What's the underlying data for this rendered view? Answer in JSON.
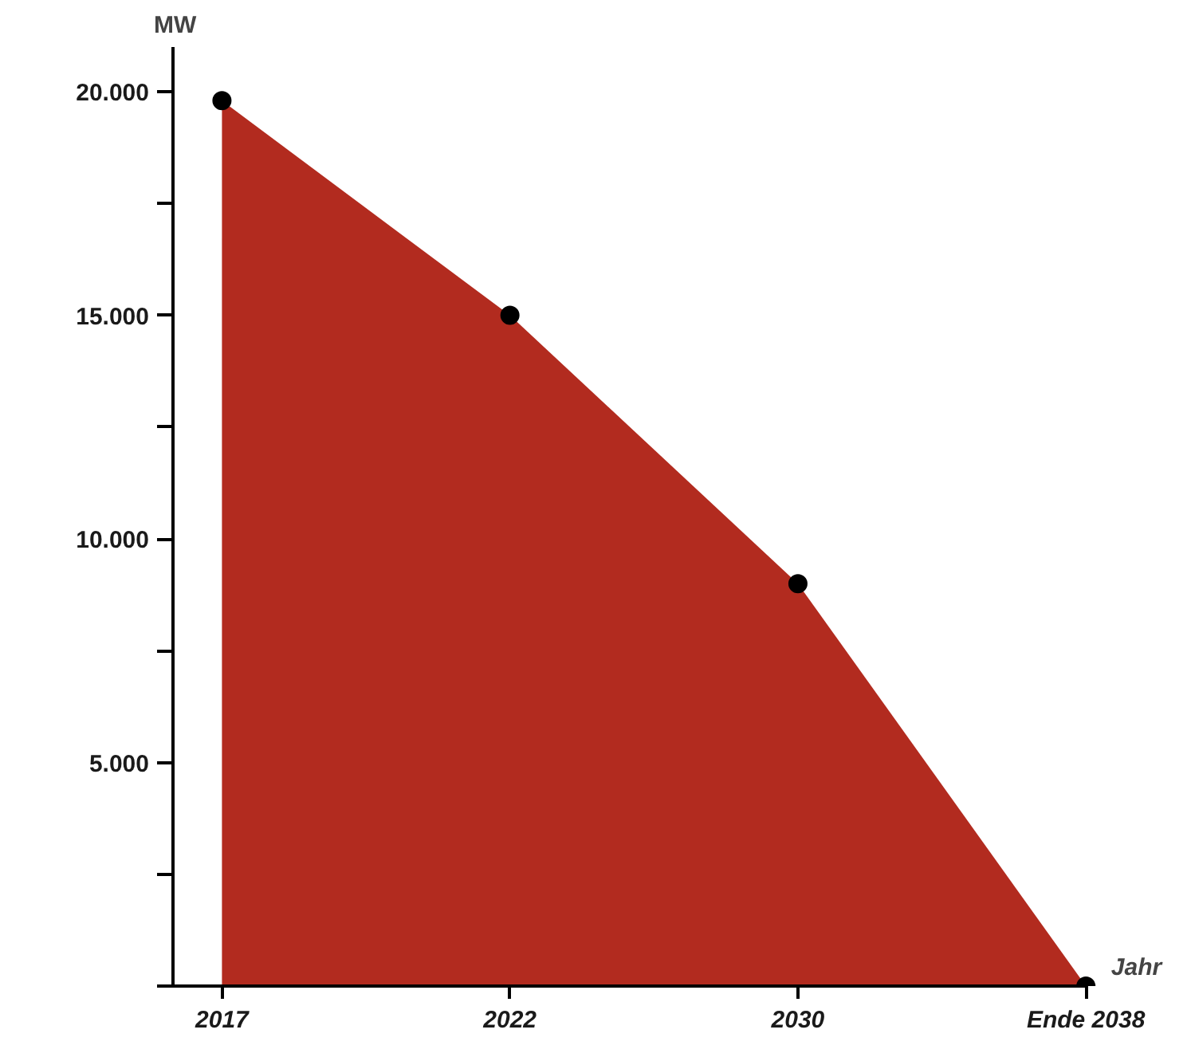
{
  "chart_data": {
    "type": "area",
    "xlabel": "Jahr",
    "ylabel": "MW",
    "categories": [
      "2017",
      "2022",
      "2030",
      "Ende 2038"
    ],
    "series": [
      {
        "color": "#b22b1f",
        "values": [
          19800,
          15000,
          9000,
          0
        ]
      },
      {
        "type": "scatter",
        "color": "#000000",
        "marker": "circle",
        "values": [
          19800,
          15000,
          9000,
          0
        ]
      }
    ],
    "ylim": [
      0,
      21000
    ],
    "yticks": [
      {
        "value": 0,
        "label": null
      },
      {
        "value": 2500,
        "label": null
      },
      {
        "value": 5000,
        "label": "5.000"
      },
      {
        "value": 7500,
        "label": null
      },
      {
        "value": 10000,
        "label": "10.000"
      },
      {
        "value": 12500,
        "label": null
      },
      {
        "value": 15000,
        "label": "15.000"
      },
      {
        "value": 17500,
        "label": null
      },
      {
        "value": 20000,
        "label": "20.000"
      }
    ],
    "grid": false
  }
}
